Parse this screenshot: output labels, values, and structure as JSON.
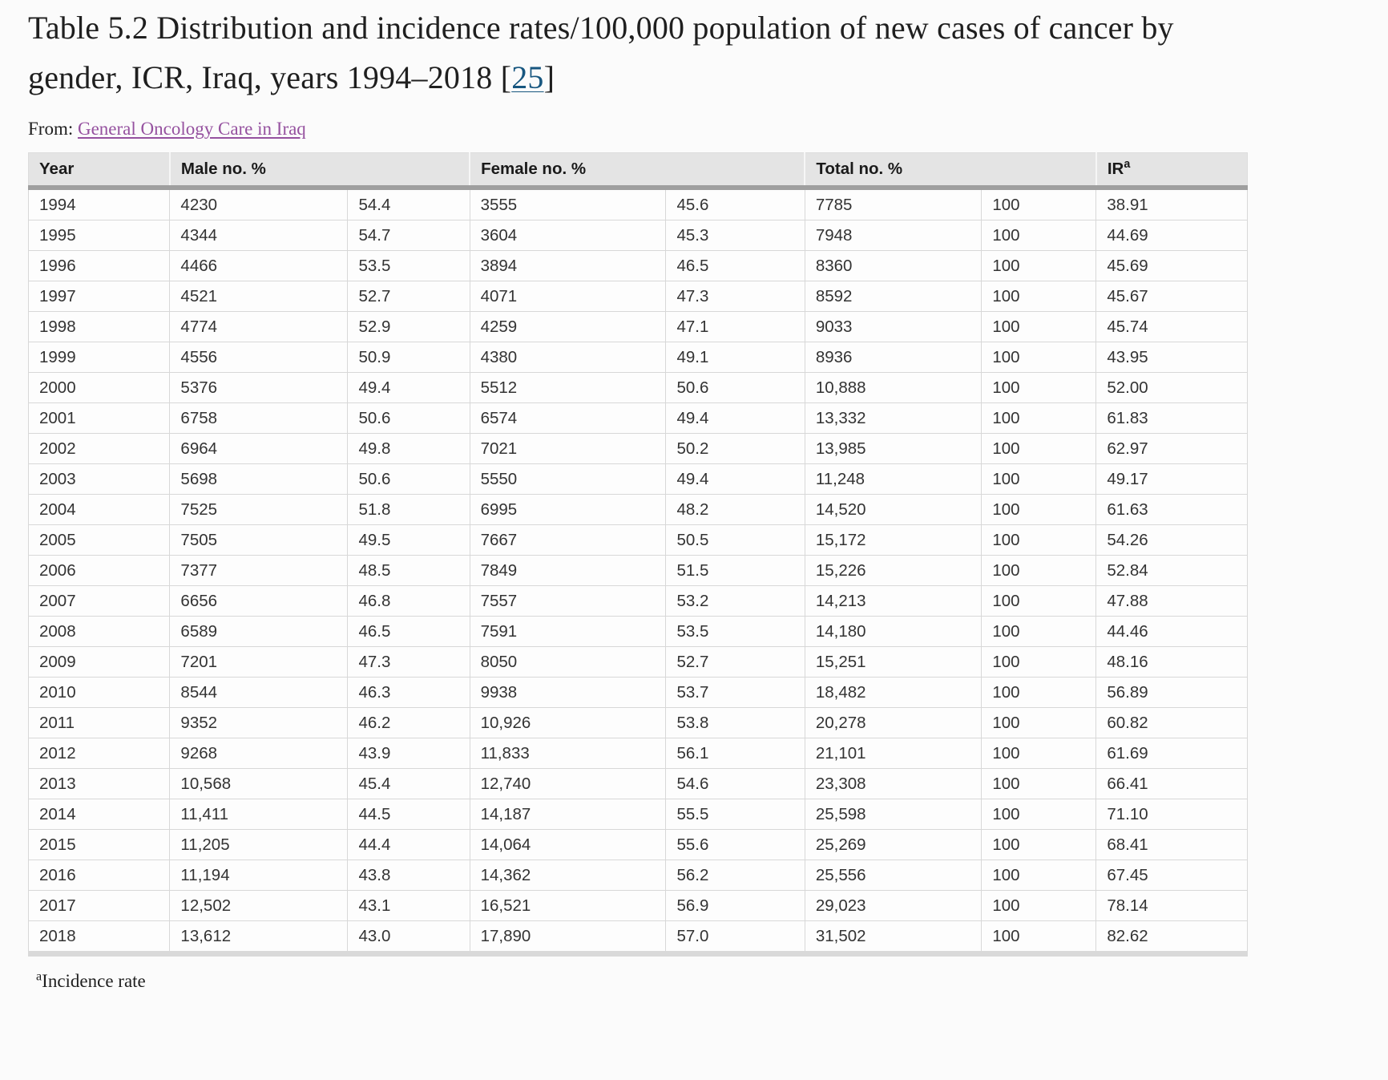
{
  "page": {
    "title_prefix": "Table 5.2 Distribution and incidence rates/100,000 population of new cases of cancer by gender, ICR, Iraq, years 1994–2018 [",
    "citation_label": "25",
    "title_suffix": "]",
    "from_label": "From: ",
    "source_link_text": "General Oncology Care in Iraq",
    "footnote_marker": "a",
    "footnote_text": "Incidence rate"
  },
  "colors": {
    "header_background": "#e4e4e4",
    "header_rule": "#9f9f9f",
    "cell_border": "#d8d8d8",
    "citation_link": "#17567f",
    "source_link": "#95519f",
    "text": "#333333"
  },
  "chart_data": {
    "type": "table",
    "title": "Table 5.2 Distribution and incidence rates/100,000 population of new cases of cancer by gender, ICR, Iraq, years 1994–2018 [25]",
    "headers": [
      {
        "label": "Year",
        "span": 1
      },
      {
        "label": "Male no. %",
        "span": 2
      },
      {
        "label": "Female no. %",
        "span": 2
      },
      {
        "label": "Total no. %",
        "span": 2
      },
      {
        "label": "IR",
        "sup": "a",
        "span": 1
      }
    ],
    "rows": [
      [
        "1994",
        "4230",
        "54.4",
        "3555",
        "45.6",
        "7785",
        "100",
        "38.91"
      ],
      [
        "1995",
        "4344",
        "54.7",
        "3604",
        "45.3",
        "7948",
        "100",
        "44.69"
      ],
      [
        "1996",
        "4466",
        "53.5",
        "3894",
        "46.5",
        "8360",
        "100",
        "45.69"
      ],
      [
        "1997",
        "4521",
        "52.7",
        "4071",
        "47.3",
        "8592",
        "100",
        "45.67"
      ],
      [
        "1998",
        "4774",
        "52.9",
        "4259",
        "47.1",
        "9033",
        "100",
        "45.74"
      ],
      [
        "1999",
        "4556",
        "50.9",
        "4380",
        "49.1",
        "8936",
        "100",
        "43.95"
      ],
      [
        "2000",
        "5376",
        "49.4",
        "5512",
        "50.6",
        "10,888",
        "100",
        "52.00"
      ],
      [
        "2001",
        "6758",
        "50.6",
        "6574",
        "49.4",
        "13,332",
        "100",
        "61.83"
      ],
      [
        "2002",
        "6964",
        "49.8",
        "7021",
        "50.2",
        "13,985",
        "100",
        "62.97"
      ],
      [
        "2003",
        "5698",
        "50.6",
        "5550",
        "49.4",
        "11,248",
        "100",
        "49.17"
      ],
      [
        "2004",
        "7525",
        "51.8",
        "6995",
        "48.2",
        "14,520",
        "100",
        "61.63"
      ],
      [
        "2005",
        "7505",
        "49.5",
        "7667",
        "50.5",
        "15,172",
        "100",
        "54.26"
      ],
      [
        "2006",
        "7377",
        "48.5",
        "7849",
        "51.5",
        "15,226",
        "100",
        "52.84"
      ],
      [
        "2007",
        "6656",
        "46.8",
        "7557",
        "53.2",
        "14,213",
        "100",
        "47.88"
      ],
      [
        "2008",
        "6589",
        "46.5",
        "7591",
        "53.5",
        "14,180",
        "100",
        "44.46"
      ],
      [
        "2009",
        "7201",
        "47.3",
        "8050",
        "52.7",
        "15,251",
        "100",
        "48.16"
      ],
      [
        "2010",
        "8544",
        "46.3",
        "9938",
        "53.7",
        "18,482",
        "100",
        "56.89"
      ],
      [
        "2011",
        "9352",
        "46.2",
        "10,926",
        "53.8",
        "20,278",
        "100",
        "60.82"
      ],
      [
        "2012",
        "9268",
        "43.9",
        "11,833",
        "56.1",
        "21,101",
        "100",
        "61.69"
      ],
      [
        "2013",
        "10,568",
        "45.4",
        "12,740",
        "54.6",
        "23,308",
        "100",
        "66.41"
      ],
      [
        "2014",
        "11,411",
        "44.5",
        "14,187",
        "55.5",
        "25,598",
        "100",
        "71.10"
      ],
      [
        "2015",
        "11,205",
        "44.4",
        "14,064",
        "55.6",
        "25,269",
        "100",
        "68.41"
      ],
      [
        "2016",
        "11,194",
        "43.8",
        "14,362",
        "56.2",
        "25,556",
        "100",
        "67.45"
      ],
      [
        "2017",
        "12,502",
        "43.1",
        "16,521",
        "56.9",
        "29,023",
        "100",
        "78.14"
      ],
      [
        "2018",
        "13,612",
        "43.0",
        "17,890",
        "57.0",
        "31,502",
        "100",
        "82.62"
      ]
    ]
  }
}
